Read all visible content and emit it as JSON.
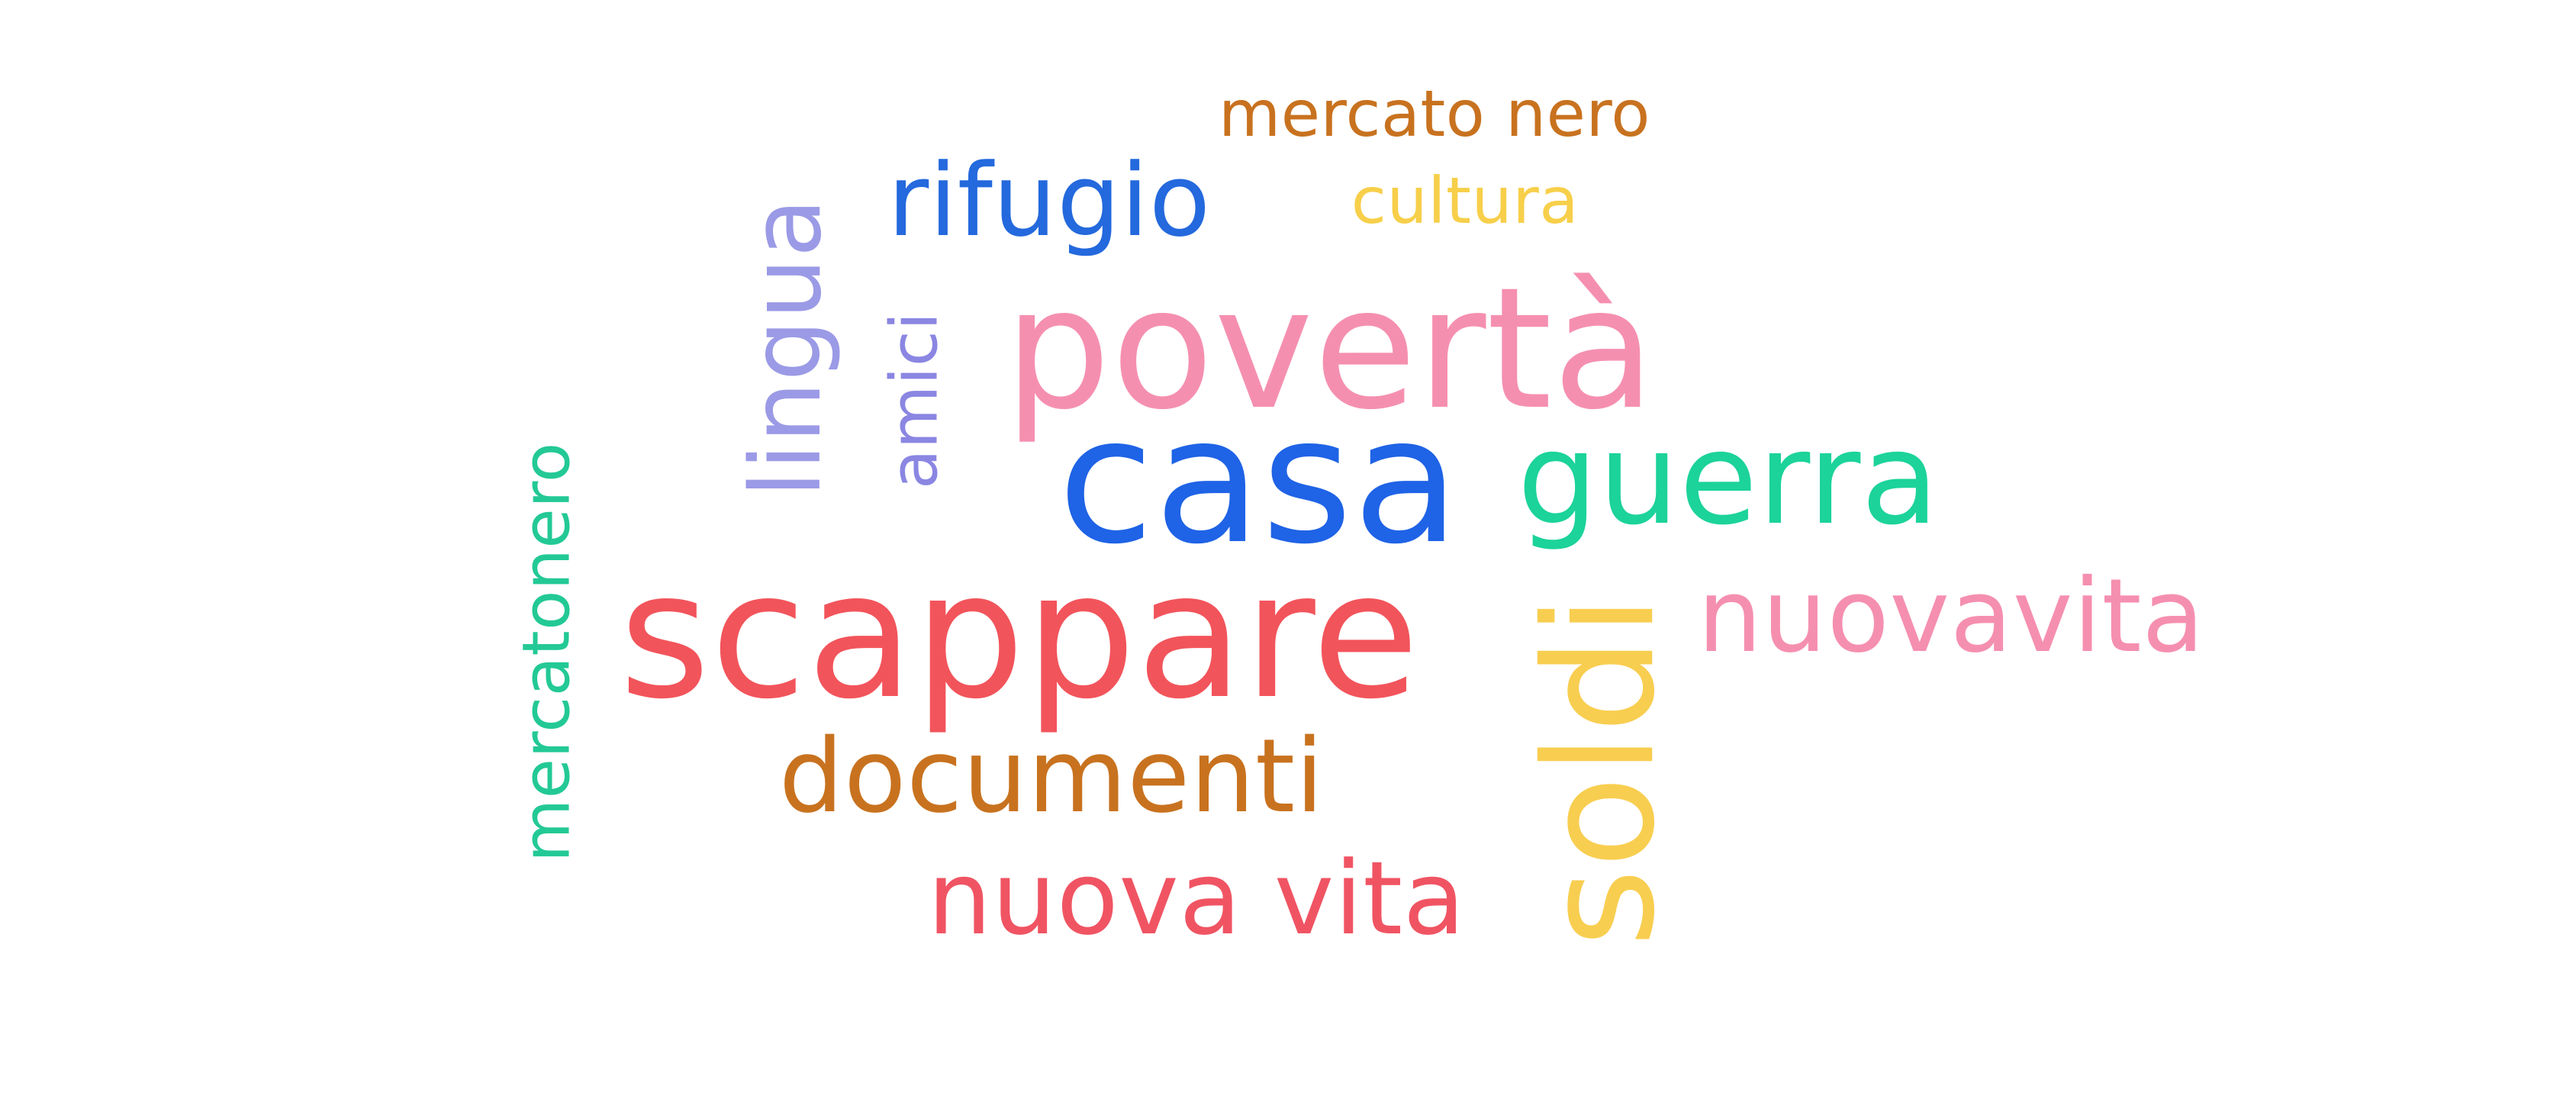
{
  "word_cloud": {
    "words": [
      {
        "id": "mercato-nero",
        "text": "mercato nero",
        "color": "#C8721F"
      },
      {
        "id": "rifugio",
        "text": "rifugio",
        "color": "#2469DD"
      },
      {
        "id": "cultura",
        "text": "cultura",
        "color": "#F7CF4A"
      },
      {
        "id": "lingua",
        "text": "lingua",
        "color": "#9B9AE6"
      },
      {
        "id": "amici",
        "text": "amici",
        "color": "#8A86E2"
      },
      {
        "id": "poverta",
        "text": "povertà",
        "color": "#F58FB0"
      },
      {
        "id": "casa",
        "text": "casa",
        "color": "#1F63E6"
      },
      {
        "id": "guerra",
        "text": "guerra",
        "color": "#1CD39A"
      },
      {
        "id": "mercatonero",
        "text": "mercatonero",
        "color": "#23C995"
      },
      {
        "id": "scappare",
        "text": "scappare",
        "color": "#F2545B"
      },
      {
        "id": "nuovavita",
        "text": "nuovavita",
        "color": "#F58FB0"
      },
      {
        "id": "soldi",
        "text": "soldi",
        "color": "#F8CE50"
      },
      {
        "id": "documenti",
        "text": "documenti",
        "color": "#C8721F"
      },
      {
        "id": "nuova-vita",
        "text": "nuova vita",
        "color": "#F05463"
      }
    ]
  }
}
